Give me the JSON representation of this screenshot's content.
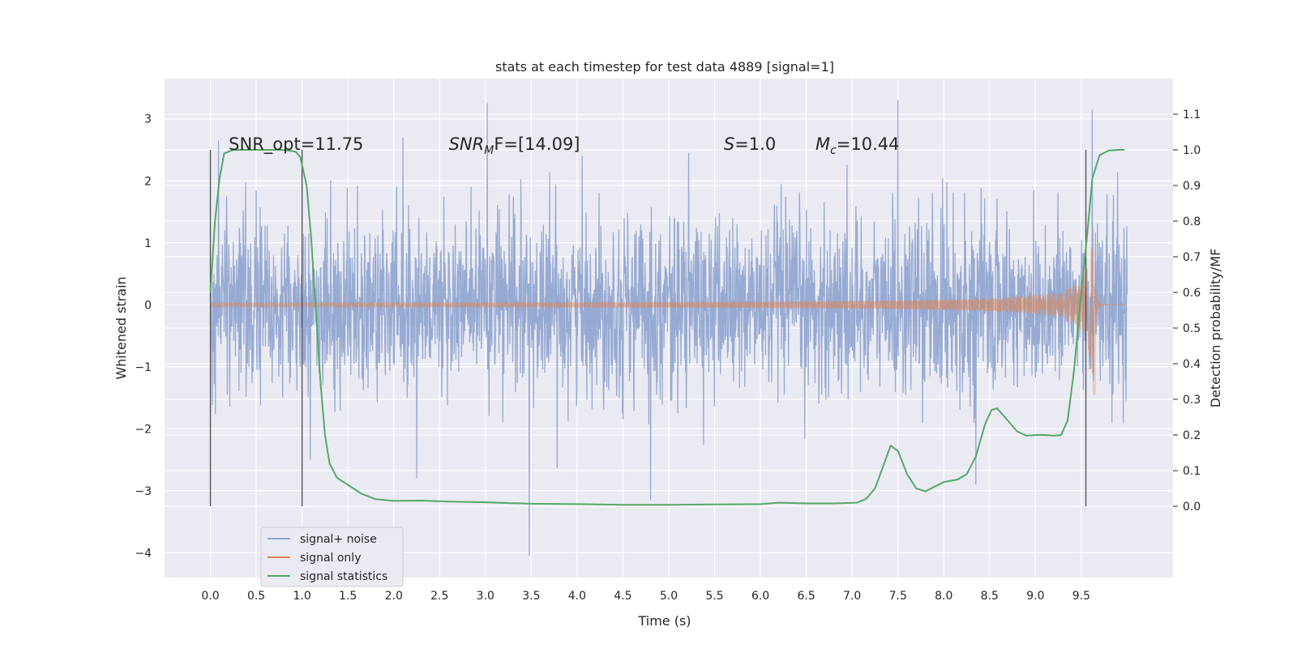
{
  "chart_data": {
    "type": "line",
    "title": "stats at each timestep for test data 4889 [signal=1]",
    "xlabel": "Time (s)",
    "ylabel": "Whitened strain",
    "y2label": "Detection probability/MF",
    "xlim": [
      -0.5,
      10.5
    ],
    "ylim": [
      -4.4,
      3.65
    ],
    "y2lim": [
      -0.2,
      1.2
    ],
    "x_ticks": [
      "0.0",
      "0.5",
      "1.0",
      "1.5",
      "2.0",
      "2.5",
      "3.0",
      "3.5",
      "4.0",
      "4.5",
      "5.0",
      "5.5",
      "6.0",
      "6.5",
      "7.0",
      "7.5",
      "8.0",
      "8.5",
      "9.0",
      "9.5"
    ],
    "y_ticks": [
      "3",
      "2",
      "1",
      "0",
      "−1",
      "−2",
      "−3",
      "−4"
    ],
    "y2_ticks": [
      "1.1",
      "1.0",
      "0.9",
      "0.8",
      "0.7",
      "0.6",
      "0.5",
      "0.4",
      "0.3",
      "0.2",
      "0.1",
      "0.0"
    ],
    "grid": true,
    "legend_position": "lower-left",
    "annotations": [
      {
        "label": "SNR_opt=11.75",
        "x": 0.2
      },
      {
        "base": "SNR",
        "sub": "M",
        "tail": "F=[14.09]",
        "x": 2.6
      },
      {
        "base": "S",
        "tail": "=1.0",
        "x": 5.6
      },
      {
        "base": "M",
        "sub": "c",
        "tail": "=10.44",
        "x": 6.6
      }
    ],
    "vertical_markers_s": [
      0.0,
      1.0,
      9.55
    ],
    "series": [
      {
        "name": "signal+ noise",
        "color": "#8ea3cf",
        "axis": "left",
        "description": "white noise, std ~0.7, from 0 to 10 s",
        "spikes": [
          [
            0.09,
            2.65
          ],
          [
            2.1,
            2.7
          ],
          [
            3.02,
            3.25
          ],
          [
            3.48,
            -4.05
          ],
          [
            7.5,
            3.3
          ],
          [
            9.62,
            3.15
          ],
          [
            1.09,
            -2.5
          ],
          [
            2.25,
            -2.8
          ],
          [
            4.8,
            -3.15
          ],
          [
            8.35,
            -2.9
          ]
        ]
      },
      {
        "name": "signal only",
        "color": "#dd8452",
        "axis": "left",
        "chirp": {
          "t_merge": 9.65,
          "amp_max": 1.5,
          "amp_min": 0.01
        }
      },
      {
        "name": "signal statistics",
        "color": "#55a868",
        "axis": "right",
        "points": [
          [
            0.0,
            0.6
          ],
          [
            0.05,
            0.8
          ],
          [
            0.1,
            0.92
          ],
          [
            0.15,
            0.99
          ],
          [
            0.25,
            1.0
          ],
          [
            0.4,
            1.0
          ],
          [
            0.6,
            1.0
          ],
          [
            0.8,
            1.0
          ],
          [
            0.93,
            0.995
          ],
          [
            0.98,
            0.98
          ],
          [
            1.05,
            0.9
          ],
          [
            1.1,
            0.75
          ],
          [
            1.15,
            0.55
          ],
          [
            1.2,
            0.35
          ],
          [
            1.25,
            0.2
          ],
          [
            1.3,
            0.12
          ],
          [
            1.38,
            0.08
          ],
          [
            1.5,
            0.06
          ],
          [
            1.65,
            0.035
          ],
          [
            1.8,
            0.02
          ],
          [
            2.0,
            0.015
          ],
          [
            2.3,
            0.016
          ],
          [
            2.6,
            0.013
          ],
          [
            3.0,
            0.011
          ],
          [
            3.5,
            0.007
          ],
          [
            4.0,
            0.006
          ],
          [
            4.5,
            0.004
          ],
          [
            5.0,
            0.004
          ],
          [
            5.5,
            0.005
          ],
          [
            6.0,
            0.006
          ],
          [
            6.2,
            0.01
          ],
          [
            6.5,
            0.008
          ],
          [
            6.8,
            0.008
          ],
          [
            7.05,
            0.01
          ],
          [
            7.15,
            0.02
          ],
          [
            7.25,
            0.05
          ],
          [
            7.35,
            0.12
          ],
          [
            7.42,
            0.17
          ],
          [
            7.5,
            0.155
          ],
          [
            7.6,
            0.09
          ],
          [
            7.7,
            0.05
          ],
          [
            7.8,
            0.042
          ],
          [
            7.9,
            0.055
          ],
          [
            8.0,
            0.068
          ],
          [
            8.15,
            0.075
          ],
          [
            8.25,
            0.09
          ],
          [
            8.35,
            0.14
          ],
          [
            8.45,
            0.23
          ],
          [
            8.52,
            0.27
          ],
          [
            8.58,
            0.275
          ],
          [
            8.7,
            0.24
          ],
          [
            8.8,
            0.21
          ],
          [
            8.9,
            0.198
          ],
          [
            9.0,
            0.2
          ],
          [
            9.1,
            0.2
          ],
          [
            9.2,
            0.198
          ],
          [
            9.28,
            0.2
          ],
          [
            9.35,
            0.24
          ],
          [
            9.42,
            0.38
          ],
          [
            9.5,
            0.6
          ],
          [
            9.56,
            0.75
          ],
          [
            9.62,
            0.92
          ],
          [
            9.7,
            0.985
          ],
          [
            9.8,
            0.998
          ],
          [
            9.9,
            1.0
          ],
          [
            9.97,
            1.0
          ]
        ]
      }
    ]
  }
}
